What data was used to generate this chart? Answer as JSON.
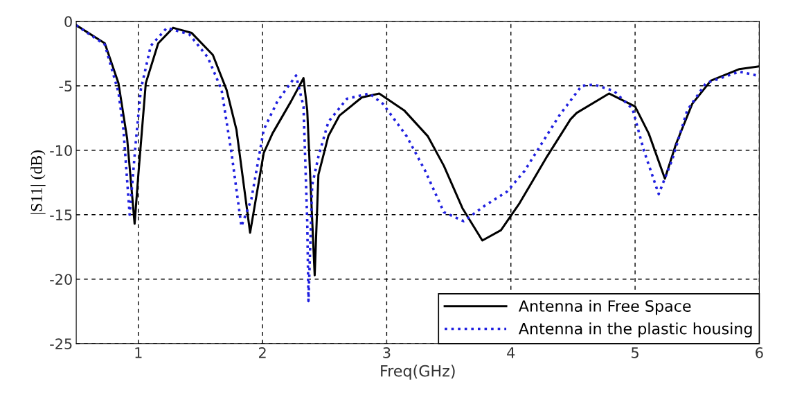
{
  "chart_data": {
    "type": "line",
    "xlabel": "Freq(GHz)",
    "ylabel": "|S11| (dB)",
    "xlim": [
      0.5,
      6
    ],
    "ylim": [
      -25,
      0
    ],
    "xticks": [
      1,
      2,
      3,
      4,
      5,
      6
    ],
    "yticks": [
      -25,
      -20,
      -15,
      -10,
      -5,
      0
    ],
    "grid": true,
    "legend": "bottom right",
    "series": [
      {
        "name": "Antenna in Free Space",
        "color": "#000000",
        "line_style": "solid",
        "x": [
          0.5,
          0.73,
          0.84,
          0.91,
          0.97,
          1.0,
          1.06,
          1.16,
          1.28,
          1.43,
          1.6,
          1.71,
          1.79,
          1.9,
          2.01,
          2.08,
          2.23,
          2.33,
          2.36,
          2.42,
          2.45,
          2.53,
          2.62,
          2.8,
          2.94,
          3.14,
          3.33,
          3.46,
          3.61,
          3.77,
          3.92,
          4.07,
          4.29,
          4.48,
          4.53,
          4.79,
          5.0,
          5.11,
          5.24,
          5.33,
          5.46,
          5.61,
          5.84,
          5.99
        ],
        "values": [
          -0.3,
          -1.7,
          -4.8,
          -9.1,
          -15.7,
          -11.9,
          -4.8,
          -1.7,
          -0.5,
          -0.9,
          -2.6,
          -5.3,
          -8.4,
          -16.4,
          -10.2,
          -8.7,
          -6.2,
          -4.4,
          -6.9,
          -19.7,
          -11.9,
          -8.9,
          -7.3,
          -5.9,
          -5.6,
          -6.9,
          -8.9,
          -11.2,
          -14.5,
          -17.0,
          -16.2,
          -14.1,
          -10.5,
          -7.6,
          -7.1,
          -5.6,
          -6.6,
          -8.7,
          -12.2,
          -9.5,
          -6.4,
          -4.6,
          -3.7,
          -3.5
        ]
      },
      {
        "name": "Antenna in the plastic housing",
        "color": "#1f1fdf",
        "line_style": "dotted",
        "x": [
          0.5,
          0.73,
          0.84,
          0.88,
          0.93,
          0.98,
          1.02,
          1.1,
          1.23,
          1.41,
          1.56,
          1.67,
          1.75,
          1.83,
          1.91,
          2.01,
          2.12,
          2.27,
          2.33,
          2.36,
          2.37,
          2.4,
          2.45,
          2.53,
          2.68,
          2.86,
          2.97,
          3.16,
          3.31,
          3.46,
          3.62,
          3.79,
          3.97,
          4.11,
          4.24,
          4.39,
          4.57,
          4.67,
          4.83,
          4.98,
          5.07,
          5.19,
          5.3,
          5.42,
          5.57,
          5.84,
          5.98
        ],
        "values": [
          -0.3,
          -1.8,
          -5.5,
          -8.4,
          -15.0,
          -9.3,
          -5.3,
          -1.9,
          -0.5,
          -1.0,
          -2.8,
          -5.3,
          -10.2,
          -15.9,
          -13.8,
          -8.4,
          -6.2,
          -4.2,
          -6.6,
          -15.5,
          -21.7,
          -12.7,
          -10.5,
          -7.8,
          -6.0,
          -5.6,
          -6.4,
          -8.9,
          -11.6,
          -14.8,
          -15.5,
          -14.3,
          -13.2,
          -11.6,
          -9.6,
          -7.3,
          -5.0,
          -4.9,
          -5.4,
          -6.8,
          -10.0,
          -13.4,
          -10.7,
          -6.9,
          -4.8,
          -3.9,
          -4.2
        ]
      }
    ]
  }
}
